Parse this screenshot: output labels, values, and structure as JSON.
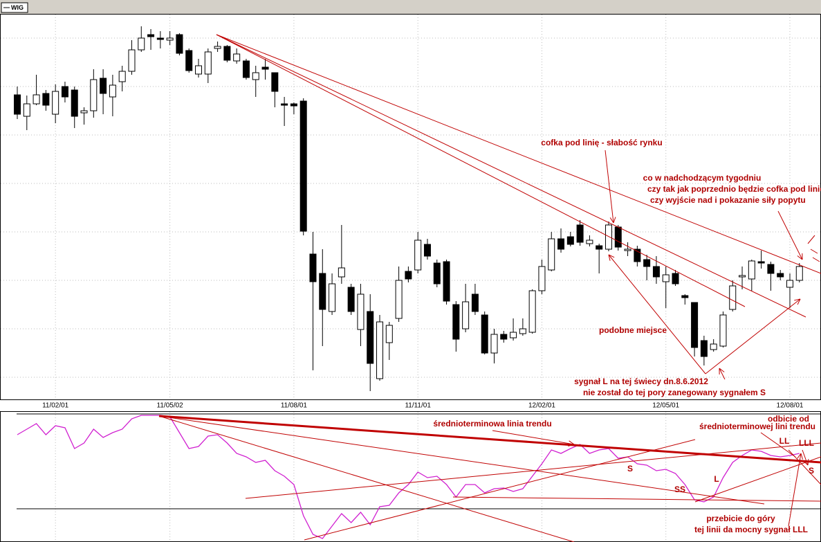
{
  "chart_data": [
    {
      "type": "candlestick",
      "legend": "WIG",
      "categories": [
        null,
        null,
        null,
        null,
        "11/02/01",
        null,
        null,
        null,
        null,
        null,
        null,
        null,
        null,
        null,
        null,
        null,
        "11/05/02",
        null,
        null,
        null,
        null,
        null,
        null,
        null,
        null,
        null,
        null,
        null,
        null,
        "11/08/01",
        null,
        null,
        null,
        null,
        null,
        null,
        null,
        null,
        null,
        null,
        null,
        null,
        "11/11/01",
        null,
        null,
        null,
        null,
        null,
        null,
        null,
        null,
        null,
        null,
        null,
        null,
        "12/02/01",
        null,
        null,
        null,
        null,
        null,
        null,
        null,
        null,
        null,
        null,
        null,
        null,
        "12/05/01",
        null,
        null,
        null,
        null,
        null,
        null,
        null,
        null,
        null,
        null,
        null,
        null,
        "12/08/01",
        null
      ],
      "open": [
        441,
        410,
        428,
        443,
        413,
        453,
        448,
        415,
        418,
        465,
        438,
        460,
        475,
        506,
        528,
        523,
        520,
        528,
        505,
        471,
        471,
        508,
        511,
        490,
        490,
        463,
        481,
        473,
        428,
        428,
        432,
        211,
        183,
        128,
        178,
        163,
        102,
        128,
        31,
        83,
        118,
        186,
        188,
        225,
        198,
        200,
        138,
        103,
        153,
        123,
        68,
        95,
        90,
        96,
        98,
        158,
        188,
        233,
        236,
        253,
        226,
        223,
        218,
        250,
        216,
        218,
        203,
        193,
        171,
        183,
        151,
        141,
        86,
        73,
        78,
        131,
        178,
        175,
        200,
        196,
        183,
        163,
        173
      ],
      "high": [
        453,
        440,
        470,
        448,
        456,
        460,
        453,
        423,
        478,
        478,
        470,
        483,
        520,
        540,
        536,
        533,
        533,
        530,
        508,
        493,
        508,
        518,
        513,
        508,
        493,
        483,
        493,
        473,
        438,
        430,
        436,
        243,
        218,
        183,
        253,
        168,
        168,
        153,
        123,
        113,
        193,
        193,
        243,
        233,
        203,
        203,
        143,
        168,
        168,
        128,
        103,
        100,
        118,
        118,
        160,
        203,
        243,
        248,
        243,
        260,
        238,
        226,
        258,
        253,
        228,
        223,
        210,
        208,
        193,
        188,
        153,
        141,
        93,
        88,
        128,
        173,
        193,
        203,
        216,
        200,
        188,
        183,
        198
      ],
      "low": [
        406,
        390,
        426,
        418,
        400,
        430,
        393,
        398,
        408,
        413,
        410,
        446,
        470,
        503,
        506,
        508,
        513,
        498,
        473,
        466,
        458,
        503,
        488,
        486,
        463,
        438,
        463,
        423,
        396,
        413,
        238,
        43,
        78,
        123,
        168,
        123,
        78,
        13,
        28,
        58,
        113,
        170,
        183,
        203,
        163,
        138,
        70,
        98,
        123,
        66,
        53,
        83,
        86,
        93,
        96,
        153,
        186,
        213,
        222,
        223,
        222,
        183,
        215,
        216,
        208,
        193,
        173,
        168,
        133,
        165,
        138,
        63,
        50,
        70,
        76,
        128,
        160,
        158,
        190,
        158,
        173,
        133,
        170
      ],
      "close": [
        413,
        428,
        441,
        426,
        446,
        438,
        410,
        418,
        463,
        443,
        455,
        475,
        506,
        523,
        525,
        521,
        523,
        501,
        476,
        483,
        503,
        511,
        491,
        500,
        466,
        473,
        478,
        446,
        426,
        425,
        244,
        171,
        131,
        168,
        191,
        128,
        153,
        53,
        113,
        108,
        173,
        175,
        231,
        208,
        168,
        143,
        88,
        142,
        128,
        68,
        95,
        88,
        98,
        103,
        158,
        193,
        233,
        218,
        225,
        228,
        231,
        218,
        253,
        221,
        218,
        200,
        193,
        178,
        181,
        168,
        148,
        76,
        63,
        81,
        123,
        165,
        180,
        201,
        198,
        183,
        178,
        173,
        193
      ],
      "ylim": [
        0,
        558
      ],
      "grid": true,
      "up_color": "#ffffff",
      "down_color": "#000000",
      "annotations": [
        "cofka pod linię - słabość rynku",
        "co w nadchodzącym tygodniu",
        "czy tak jak poprzednio będzie cofka pod linię",
        "czy wyjście nad i pokazanie siły popytu",
        "podobne miejsce",
        "sygnał L na tej świecy dn.8.6.2012",
        "nie został do tej pory zanegowany sygnałem S"
      ]
    },
    {
      "type": "line",
      "color": "#d020d0",
      "values": [
        155,
        163,
        171,
        155,
        168,
        165,
        135,
        143,
        163,
        151,
        158,
        163,
        178,
        183,
        183,
        183,
        181,
        158,
        135,
        138,
        153,
        155,
        143,
        128,
        123,
        115,
        118,
        103,
        95,
        83,
        38,
        11,
        5,
        23,
        41,
        28,
        43,
        25,
        51,
        53,
        71,
        83,
        101,
        93,
        95,
        83,
        65,
        83,
        83,
        71,
        77,
        78,
        73,
        77,
        95,
        113,
        133,
        128,
        135,
        141,
        128,
        133,
        135,
        121,
        123,
        113,
        111,
        103,
        105,
        99,
        83,
        61,
        58,
        65,
        93,
        115,
        125,
        133,
        131,
        125,
        123,
        125,
        128
      ],
      "ylim": [
        0,
        186
      ],
      "annotations": [
        "średnioterminowa linia trendu",
        "odbicie od",
        "średnioterminowej lini trendu",
        "LL",
        "LLL",
        "S",
        "L",
        "SS",
        "S",
        "przebicie do góry",
        "tej linii da mocny sygnał LLL"
      ]
    }
  ]
}
